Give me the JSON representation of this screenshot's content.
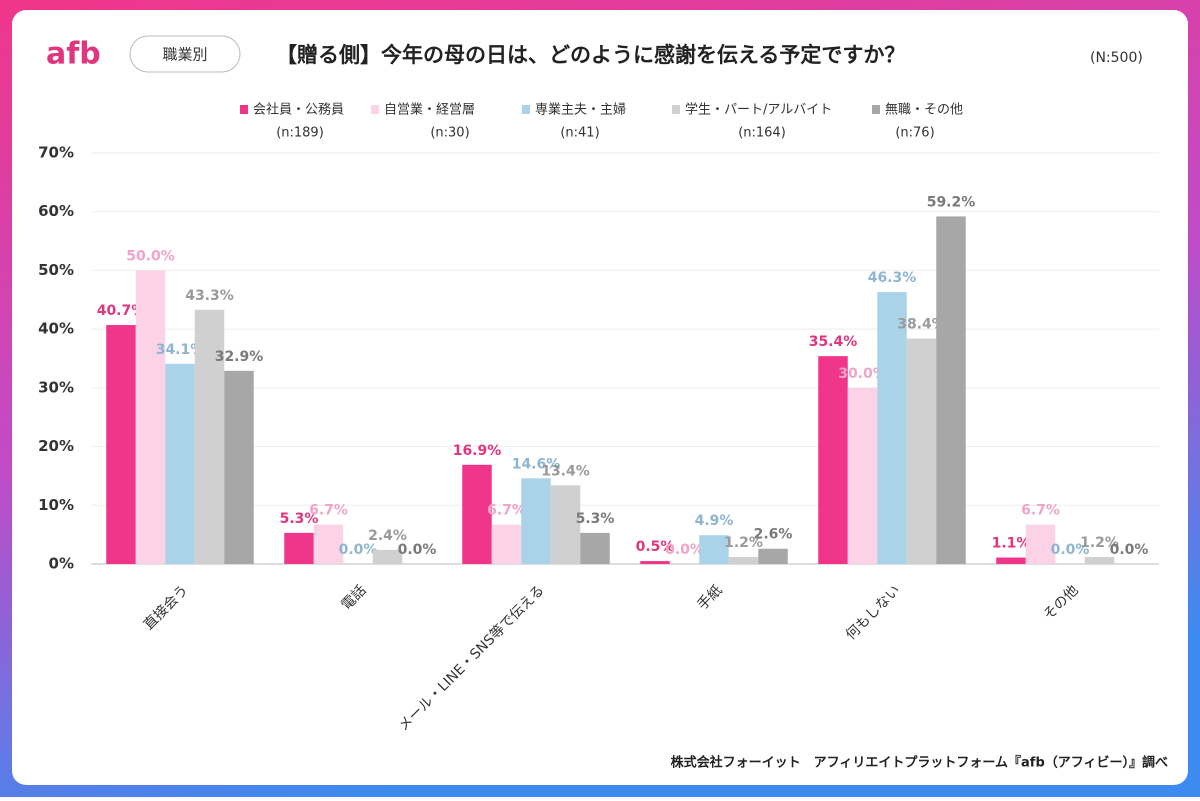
{
  "logo": "afb",
  "filter_label": "職業別",
  "chart_data": {
    "type": "bar",
    "title": "【贈る側】今年の母の日は、どのように感謝を伝える予定ですか？",
    "subtitle": "(N:500)",
    "source": "株式会社フォーイット　アフィリエイトプラットフォーム『afb（アフィビー）』調べ",
    "categories": [
      "直接会う",
      "電話",
      "メール・LINE・SNS等で伝える",
      "手紙",
      "何もしない",
      "その他"
    ],
    "series": [
      {
        "name": "会社員・公務員",
        "sample_label": "(n:189)",
        "color": "#f0368a",
        "label_color": "#e0357f",
        "values": [
          40.7,
          5.3,
          16.9,
          0.5,
          35.4,
          1.1
        ],
        "value_labels": [
          "40.7%",
          "5.3%",
          "16.9%",
          "0.5%",
          "35.4%",
          "1.1%"
        ]
      },
      {
        "name": "自営業・経営層",
        "sample_label": "(n:30)",
        "color": "#fcd2e7",
        "label_color": "#f2a3c9",
        "values": [
          50.0,
          6.7,
          6.7,
          0.0,
          30.0,
          6.7
        ],
        "value_labels": [
          "50.0%",
          "6.7%",
          "6.7%",
          "0.0%",
          "30.0%",
          "6.7%"
        ]
      },
      {
        "name": "専業主夫・主婦",
        "sample_label": "(n:41)",
        "color": "#aad2e9",
        "label_color": "#8db6d0",
        "values": [
          34.1,
          0.0,
          14.6,
          4.9,
          46.3,
          0.0
        ],
        "value_labels": [
          "34.1%",
          "0.0%",
          "14.6%",
          "4.9%",
          "46.3%",
          "0.0%"
        ]
      },
      {
        "name": "学生・パート/アルバイト",
        "sample_label": "(n:164)",
        "color": "#d0d0d0",
        "label_color": "#9a9a9a",
        "values": [
          43.3,
          2.4,
          13.4,
          1.2,
          38.4,
          1.2
        ],
        "value_labels": [
          "43.3%",
          "2.4%",
          "13.4%",
          "1.2%",
          "38.4%",
          "1.2%"
        ]
      },
      {
        "name": "無職・その他",
        "sample_label": "(n:76)",
        "color": "#a7a7a7",
        "label_color": "#7a7a7a",
        "values": [
          32.9,
          0.0,
          5.3,
          2.6,
          59.2,
          0.0
        ],
        "value_labels": [
          "32.9%",
          "0.0%",
          "5.3%",
          "2.6%",
          "59.2%",
          "0.0%"
        ]
      }
    ],
    "ylim": [
      0,
      70
    ],
    "yticks": [
      {
        "value": 0,
        "label": "0%"
      },
      {
        "value": 10,
        "label": "10%"
      },
      {
        "value": 20,
        "label": "20%"
      },
      {
        "value": 30,
        "label": "30%"
      },
      {
        "value": 40,
        "label": "40%"
      },
      {
        "value": 50,
        "label": "50%"
      },
      {
        "value": 60,
        "label": "60%"
      },
      {
        "value": 70,
        "label": "70%"
      }
    ],
    "grid": true
  }
}
